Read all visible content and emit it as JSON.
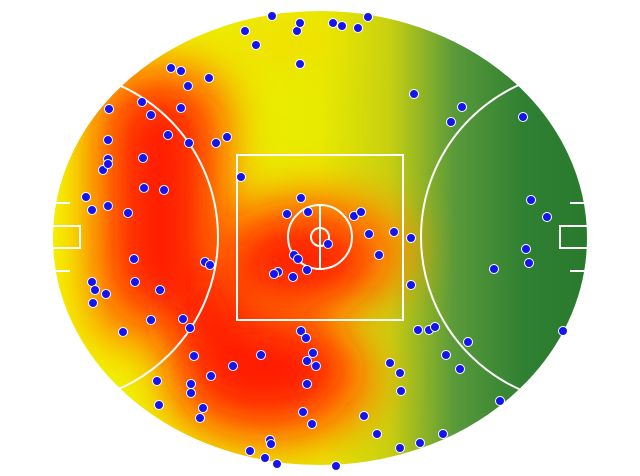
{
  "chart_data": {
    "type": "scatter",
    "color": "#1414f0",
    "xlim": [
      0,
      536
    ],
    "ylim": [
      456,
      0
    ],
    "x": [
      193,
      204,
      220,
      245,
      248,
      248,
      281,
      290,
      306,
      316,
      119,
      129,
      136,
      157,
      90,
      99,
      129,
      57,
      116,
      137,
      164,
      175,
      56,
      56,
      91,
      51,
      56,
      189,
      92,
      112,
      34,
      40,
      56,
      76,
      249,
      235,
      256,
      302,
      309,
      317,
      342,
      359,
      327,
      276,
      242,
      246,
      255,
      241,
      226,
      222,
      153,
      158,
      82,
      83,
      108,
      40,
      43,
      54,
      41,
      71,
      99,
      131,
      138,
      362,
      410,
      399,
      471,
      479,
      495,
      474,
      477,
      442,
      511,
      359,
      366,
      377,
      383,
      416,
      394,
      408,
      448,
      249,
      254,
      261,
      255,
      264,
      209,
      142,
      181,
      159,
      105,
      139,
      139,
      151,
      148,
      107,
      255,
      251,
      260,
      312,
      338,
      348,
      349,
      325,
      348,
      368,
      391,
      218,
      219,
      198,
      213,
      225,
      284
    ],
    "values": [
      21,
      35,
      6,
      21,
      13,
      54,
      13,
      16,
      18,
      7,
      58,
      61,
      76,
      68,
      92,
      105,
      98,
      99,
      125,
      133,
      133,
      127,
      130,
      149,
      148,
      160,
      154,
      167,
      178,
      180,
      187,
      200,
      196,
      203,
      188,
      204,
      202,
      206,
      202,
      224,
      222,
      228,
      245,
      234,
      245,
      249,
      260,
      267,
      262,
      264,
      252,
      255,
      249,
      272,
      280,
      272,
      280,
      284,
      293,
      322,
      310,
      309,
      318,
      84,
      97,
      112,
      107,
      190,
      207,
      239,
      253,
      259,
      321,
      275,
      320,
      320,
      317,
      332,
      345,
      359,
      391,
      321,
      328,
      343,
      351,
      356,
      345,
      346,
      356,
      366,
      371,
      374,
      383,
      398,
      408,
      395,
      374,
      402,
      414,
      406,
      353,
      363,
      381,
      424,
      438,
      433,
      424,
      430,
      434,
      441,
      448,
      454,
      456
    ]
  }
}
